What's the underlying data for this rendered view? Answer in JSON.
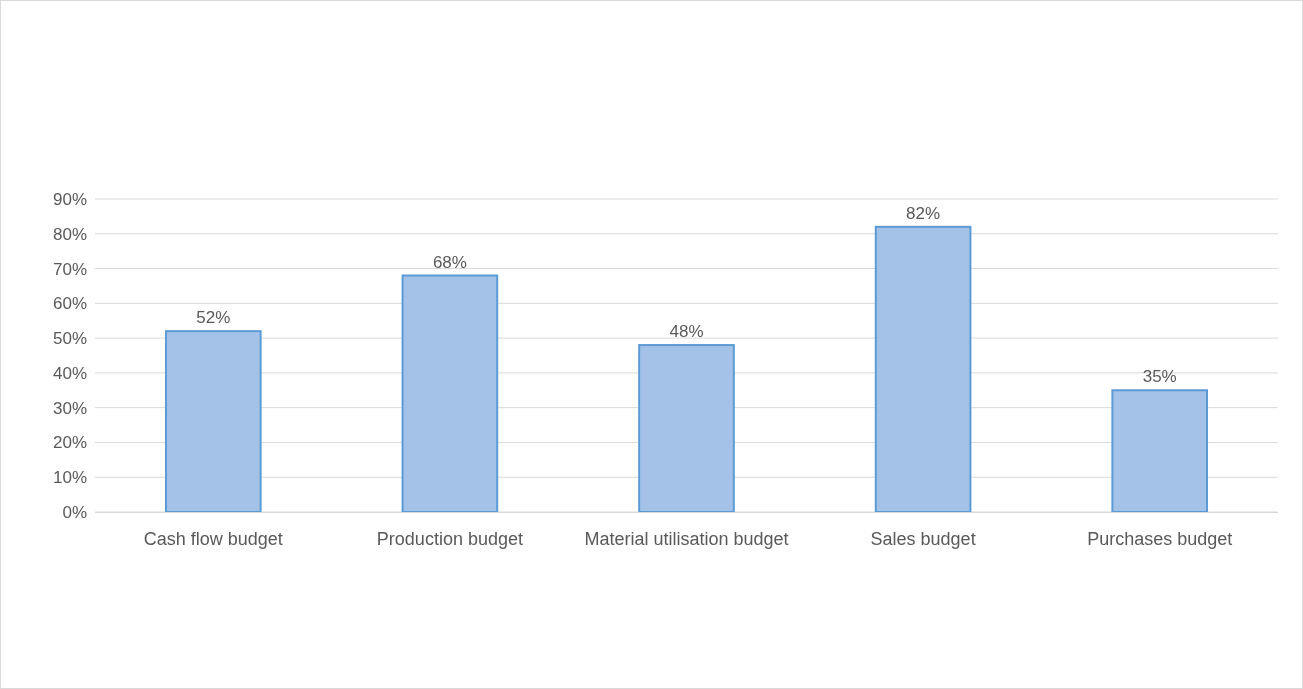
{
  "chart_data": {
    "type": "bar",
    "categories": [
      "Cash flow budget",
      "Production budget",
      "Material utilisation budget",
      "Sales budget",
      "Purchases budget"
    ],
    "values": [
      52,
      68,
      48,
      82,
      35
    ],
    "value_labels": [
      "52%",
      "68%",
      "48%",
      "82%",
      "35%"
    ],
    "color": "#a4c2e8",
    "ylim": [
      0,
      90
    ],
    "yticks": [
      {
        "value": 0,
        "label": "0%"
      },
      {
        "value": 10,
        "label": "10%"
      },
      {
        "value": 20,
        "label": "20%"
      },
      {
        "value": 30,
        "label": "30%"
      },
      {
        "value": 40,
        "label": "40%"
      },
      {
        "value": 50,
        "label": "50%"
      },
      {
        "value": 60,
        "label": "60%"
      },
      {
        "value": 70,
        "label": "70%"
      },
      {
        "value": 80,
        "label": "80%"
      },
      {
        "value": 90,
        "label": "90%"
      }
    ],
    "grid": "y"
  }
}
